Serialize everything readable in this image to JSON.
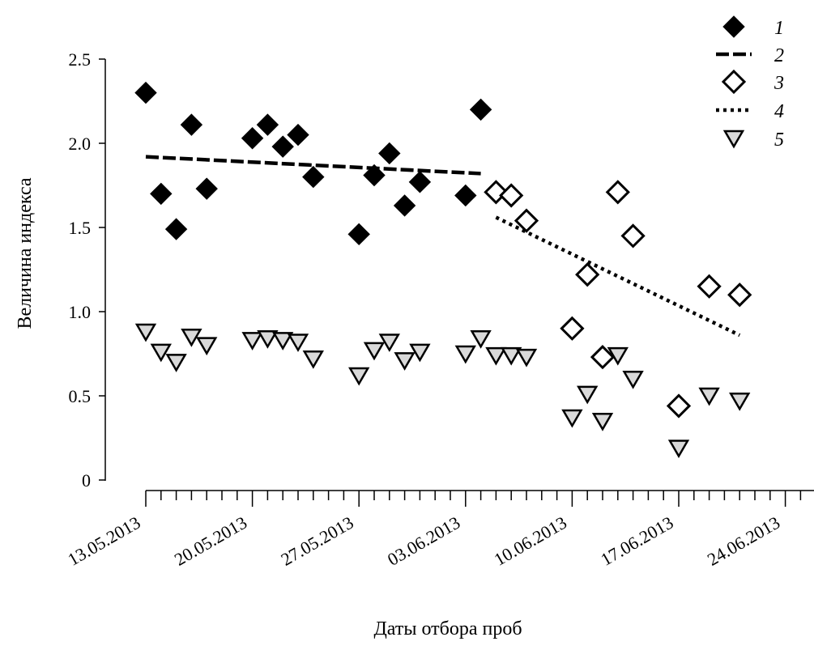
{
  "chart_data": {
    "type": "scatter",
    "title": "",
    "xlabel": "Даты отбора проб",
    "ylabel": "Величина индекса",
    "x_type": "date",
    "xlim": [
      "2013-05-13",
      "2013-06-26"
    ],
    "ylim": [
      0,
      2.5
    ],
    "x_tick_labels": [
      "13.05.2013",
      "20.05.2013",
      "27.05.2013",
      "03.06.2013",
      "10.06.2013",
      "17.06.2013",
      "24.06.2013"
    ],
    "x_tick_dates": [
      "2013-05-13",
      "2013-05-20",
      "2013-05-27",
      "2013-06-03",
      "2013-06-10",
      "2013-06-17",
      "2013-06-24"
    ],
    "y_tick_labels": [
      "0",
      "0.5",
      "1.0",
      "1.5",
      "2.0",
      "2.5"
    ],
    "y_tick_values": [
      0,
      0.5,
      1.0,
      1.5,
      2.0,
      2.5
    ],
    "grid": false,
    "legend_position": "top-right",
    "series": [
      {
        "name": "1",
        "kind": "points",
        "marker": "diamond",
        "color": "#000000",
        "fill": "#000000",
        "points": [
          {
            "x": "2013-05-13",
            "y": 2.3
          },
          {
            "x": "2013-05-14",
            "y": 1.7
          },
          {
            "x": "2013-05-15",
            "y": 1.49
          },
          {
            "x": "2013-05-16",
            "y": 2.11
          },
          {
            "x": "2013-05-17",
            "y": 1.73
          },
          {
            "x": "2013-05-20",
            "y": 2.03
          },
          {
            "x": "2013-05-21",
            "y": 2.11
          },
          {
            "x": "2013-05-22",
            "y": 1.98
          },
          {
            "x": "2013-05-23",
            "y": 2.05
          },
          {
            "x": "2013-05-24",
            "y": 1.8
          },
          {
            "x": "2013-05-27",
            "y": 1.46
          },
          {
            "x": "2013-05-28",
            "y": 1.81
          },
          {
            "x": "2013-05-29",
            "y": 1.94
          },
          {
            "x": "2013-05-30",
            "y": 1.63
          },
          {
            "x": "2013-05-31",
            "y": 1.77
          },
          {
            "x": "2013-06-03",
            "y": 1.69
          },
          {
            "x": "2013-06-04",
            "y": 2.2
          }
        ]
      },
      {
        "name": "2",
        "kind": "trend",
        "line_style": "dashed",
        "color": "#000000",
        "points": [
          {
            "x": "2013-05-13",
            "y": 1.92
          },
          {
            "x": "2013-06-04",
            "y": 1.82
          }
        ]
      },
      {
        "name": "3",
        "kind": "points",
        "marker": "diamond",
        "color": "#000000",
        "fill": "#ffffff",
        "points": [
          {
            "x": "2013-06-05",
            "y": 1.71
          },
          {
            "x": "2013-06-06",
            "y": 1.69
          },
          {
            "x": "2013-06-07",
            "y": 1.54
          },
          {
            "x": "2013-06-10",
            "y": 0.9
          },
          {
            "x": "2013-06-11",
            "y": 1.22
          },
          {
            "x": "2013-06-12",
            "y": 0.73
          },
          {
            "x": "2013-06-13",
            "y": 1.71
          },
          {
            "x": "2013-06-14",
            "y": 1.45
          },
          {
            "x": "2013-06-17",
            "y": 0.44
          },
          {
            "x": "2013-06-19",
            "y": 1.15
          },
          {
            "x": "2013-06-21",
            "y": 1.1
          }
        ]
      },
      {
        "name": "4",
        "kind": "trend",
        "line_style": "dotted",
        "color": "#000000",
        "points": [
          {
            "x": "2013-06-05",
            "y": 1.56
          },
          {
            "x": "2013-06-21",
            "y": 0.86
          }
        ]
      },
      {
        "name": "5",
        "kind": "points",
        "marker": "triangle-down",
        "color": "#000000",
        "fill": "#d9d9d9",
        "points": [
          {
            "x": "2013-05-13",
            "y": 0.88
          },
          {
            "x": "2013-05-14",
            "y": 0.76
          },
          {
            "x": "2013-05-15",
            "y": 0.7
          },
          {
            "x": "2013-05-16",
            "y": 0.85
          },
          {
            "x": "2013-05-17",
            "y": 0.8
          },
          {
            "x": "2013-05-20",
            "y": 0.83
          },
          {
            "x": "2013-05-21",
            "y": 0.84
          },
          {
            "x": "2013-05-22",
            "y": 0.83
          },
          {
            "x": "2013-05-23",
            "y": 0.82
          },
          {
            "x": "2013-05-24",
            "y": 0.72
          },
          {
            "x": "2013-05-27",
            "y": 0.62
          },
          {
            "x": "2013-05-28",
            "y": 0.77
          },
          {
            "x": "2013-05-29",
            "y": 0.82
          },
          {
            "x": "2013-05-30",
            "y": 0.71
          },
          {
            "x": "2013-05-31",
            "y": 0.76
          },
          {
            "x": "2013-06-03",
            "y": 0.75
          },
          {
            "x": "2013-06-04",
            "y": 0.84
          },
          {
            "x": "2013-06-05",
            "y": 0.74
          },
          {
            "x": "2013-06-06",
            "y": 0.74
          },
          {
            "x": "2013-06-07",
            "y": 0.73
          },
          {
            "x": "2013-06-10",
            "y": 0.37
          },
          {
            "x": "2013-06-11",
            "y": 0.51
          },
          {
            "x": "2013-06-12",
            "y": 0.35
          },
          {
            "x": "2013-06-13",
            "y": 0.74
          },
          {
            "x": "2013-06-14",
            "y": 0.6
          },
          {
            "x": "2013-06-17",
            "y": 0.19
          },
          {
            "x": "2013-06-19",
            "y": 0.5
          },
          {
            "x": "2013-06-21",
            "y": 0.47
          }
        ]
      }
    ]
  }
}
